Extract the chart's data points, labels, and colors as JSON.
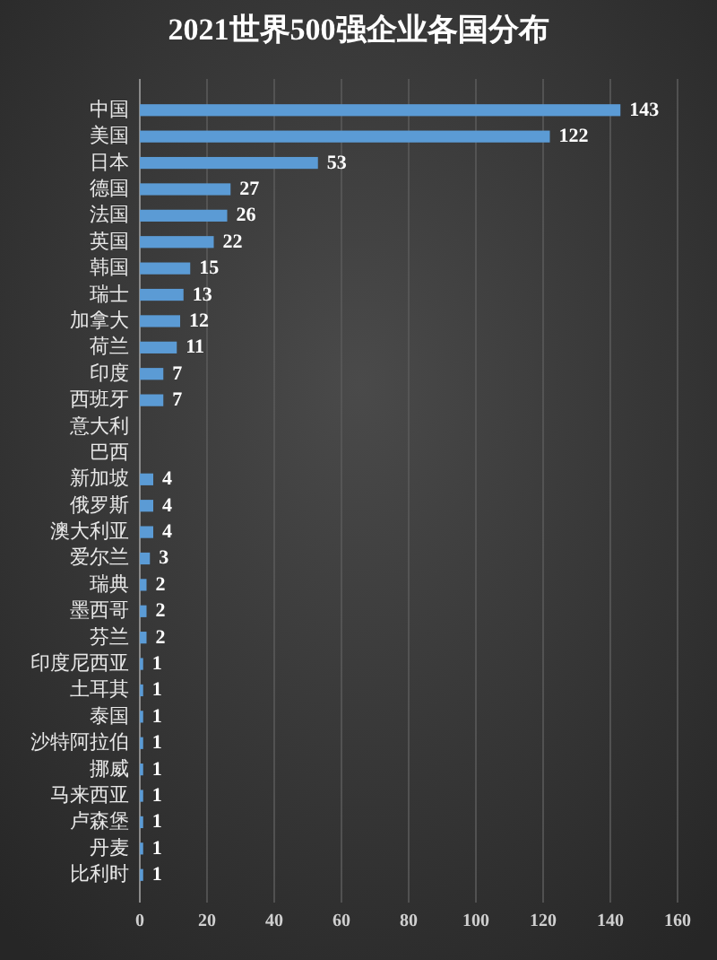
{
  "chart_data": {
    "type": "bar",
    "orientation": "horizontal",
    "title": "2021世界500强企业各国分布",
    "categories": [
      "中国",
      "美国",
      "日本",
      "德国",
      "法国",
      "英国",
      "韩国",
      "瑞士",
      "加拿大",
      "荷兰",
      "印度",
      "西班牙",
      "意大利",
      "巴西",
      "新加坡",
      "俄罗斯",
      "澳大利亚",
      "爱尔兰",
      "瑞典",
      "墨西哥",
      "芬兰",
      "印度尼西亚",
      "土耳其",
      "泰国",
      "沙特阿拉伯",
      "挪威",
      "马来西亚",
      "卢森堡",
      "丹麦",
      "比利时"
    ],
    "values": [
      143,
      122,
      53,
      27,
      26,
      22,
      15,
      13,
      12,
      11,
      7,
      7,
      null,
      null,
      4,
      4,
      4,
      3,
      2,
      2,
      2,
      1,
      1,
      1,
      1,
      1,
      1,
      1,
      1,
      1
    ],
    "color": "#5b9bd5",
    "xlim": [
      0,
      160
    ],
    "xticks": [
      0,
      20,
      40,
      60,
      80,
      100,
      120,
      140,
      160
    ],
    "grid": "x",
    "data_labels": true
  }
}
